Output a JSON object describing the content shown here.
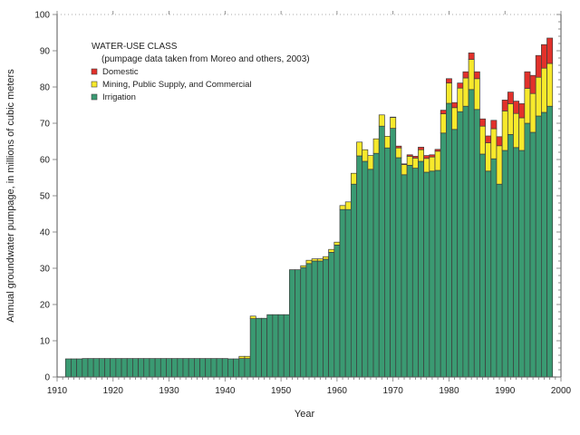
{
  "chart_data": {
    "type": "bar",
    "stacked": true,
    "xlabel": "Year",
    "ylabel": "Annual groundwater pumpage, in millions of cubic meters",
    "xlim": [
      1910,
      2000
    ],
    "ylim": [
      0,
      100
    ],
    "xticks": [
      "1910",
      "1920",
      "1930",
      "1940",
      "1950",
      "1960",
      "1970",
      "1980",
      "1990",
      "2000"
    ],
    "yticks": [
      "0",
      "10",
      "20",
      "30",
      "40",
      "50",
      "60",
      "70",
      "80",
      "90",
      "100"
    ],
    "grid": false,
    "legend": {
      "placement": "top-left",
      "title": "WATER-USE CLASS",
      "subtitle": "(pumpage data taken from Moreo and others, 2003)"
    },
    "first_year": 1912,
    "last_year": 1998,
    "series": [
      {
        "name": "Domestic",
        "color": "#e2312b",
        "values": [
          0,
          0,
          0,
          0,
          0,
          0,
          0,
          0,
          0,
          0,
          0,
          0,
          0,
          0,
          0,
          0,
          0,
          0,
          0,
          0,
          0,
          0,
          0,
          0,
          0,
          0,
          0,
          0,
          0,
          0,
          0,
          0,
          0,
          0,
          0,
          0,
          0,
          0,
          0,
          0,
          0,
          0,
          0,
          0,
          0,
          0,
          0,
          0,
          0,
          0,
          0,
          0,
          0,
          0,
          0,
          0,
          0,
          0,
          0.1,
          0.5,
          0.2,
          0.4,
          0.5,
          0.7,
          0.8,
          0.6,
          0.5,
          1.0,
          1.2,
          1.4,
          1.4,
          1.7,
          1.8,
          1.9,
          2.0,
          1.9,
          2.3,
          2.5,
          3.0,
          3.2,
          3.4,
          3.9,
          4.6,
          5.0,
          6.0,
          6.5,
          7.0
        ]
      },
      {
        "name": "Mining, Public Supply, and Commercial",
        "color": "#f7e92c",
        "values": [
          0,
          0,
          0,
          0,
          0,
          0,
          0,
          0,
          0,
          0,
          0,
          0,
          0,
          0,
          0,
          0,
          0,
          0,
          0,
          0,
          0,
          0,
          0,
          0,
          0,
          0,
          0,
          0,
          0,
          0,
          0,
          0.6,
          0.6,
          0.7,
          0,
          0,
          0,
          0,
          0,
          0,
          0,
          0,
          0.5,
          0.9,
          0.6,
          0.6,
          0.7,
          0.8,
          0.8,
          1.1,
          2.1,
          3.0,
          3.8,
          3.2,
          3.8,
          4.0,
          3.1,
          3.2,
          3.0,
          2.7,
          2.8,
          2.5,
          2.8,
          3.2,
          3.8,
          3.9,
          5.3,
          5.3,
          5.6,
          6.0,
          6.5,
          7.8,
          8.3,
          8.5,
          7.7,
          7.8,
          8.3,
          10.6,
          10.9,
          8.5,
          9.4,
          9.0,
          9.6,
          10.7,
          10.7,
          12.2,
          11.8
        ]
      },
      {
        "name": "Irrigation",
        "color": "#3a9a72",
        "values": [
          5.0,
          5.0,
          5.0,
          5.1,
          5.1,
          5.1,
          5.1,
          5.1,
          5.1,
          5.1,
          5.1,
          5.1,
          5.1,
          5.1,
          5.1,
          5.1,
          5.1,
          5.1,
          5.1,
          5.1,
          5.1,
          5.1,
          5.1,
          5.1,
          5.1,
          5.1,
          5.1,
          5.1,
          5.1,
          5.0,
          5.0,
          5.1,
          5.1,
          16.1,
          16.2,
          16.2,
          17.2,
          17.2,
          17.2,
          17.2,
          29.6,
          29.6,
          30.2,
          31.3,
          32.0,
          32.0,
          32.5,
          34.4,
          36.4,
          46.2,
          46.2,
          53.2,
          61.0,
          59.5,
          57.3,
          61.7,
          69.2,
          63.2,
          68.6,
          60.5,
          55.8,
          58.4,
          57.6,
          59.5,
          56.5,
          56.8,
          57.0,
          67.3,
          75.5,
          68.3,
          73.2,
          74.7,
          79.3,
          73.8,
          61.5,
          56.8,
          60.2,
          53.2,
          62.5,
          66.9,
          63.3,
          62.5,
          70.0,
          67.5,
          72.0,
          73.0,
          74.7
        ]
      }
    ]
  }
}
